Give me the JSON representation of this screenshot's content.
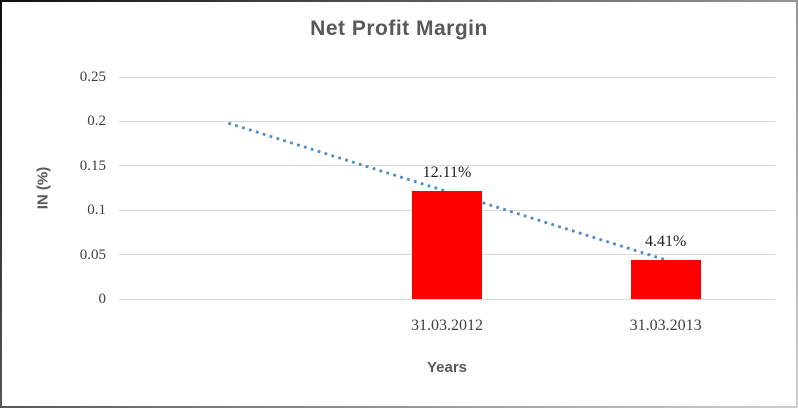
{
  "chart_data": {
    "type": "bar",
    "title": "Net Profit Margin",
    "xlabel": "Years",
    "ylabel": "IN (%)",
    "categories": [
      "31.03.2012",
      "31.03.2013"
    ],
    "values": [
      0.1211,
      0.0441
    ],
    "data_labels": [
      "12.11%",
      "4.41%"
    ],
    "y_ticks": [
      {
        "label": "0.25",
        "value": 0.25
      },
      {
        "label": "0.2",
        "value": 0.2
      },
      {
        "label": "0.15",
        "value": 0.15
      },
      {
        "label": "0.1",
        "value": 0.1
      },
      {
        "label": "0.05",
        "value": 0.05
      },
      {
        "label": "0",
        "value": 0
      }
    ],
    "ylim": [
      0,
      0.25
    ],
    "grid": true,
    "legend": "none",
    "leading_empty_category_slots": 1,
    "colors": {
      "bar": "#ff0000",
      "trendline": "#4f8bc9",
      "gridline": "#d9d9d9",
      "title_text": "#595959",
      "tick_text": "#404040",
      "data_label_text": "#1f1f1f"
    },
    "trendline": {
      "type": "linear",
      "style": "dotted",
      "start_value": 0.198,
      "end_value": 0.044,
      "spans_slots": [
        0.5,
        2.5
      ]
    }
  }
}
